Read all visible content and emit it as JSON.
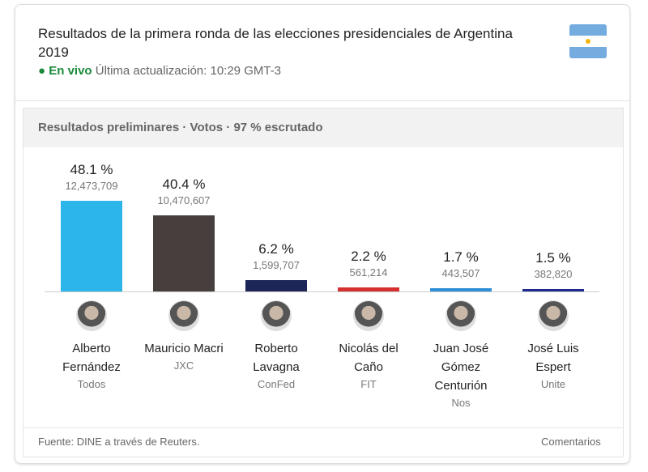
{
  "header": {
    "title": "Resultados de la primera ronda de las elecciones presidenciales de Argentina 2019",
    "live": "En vivo",
    "updated": "Última actualización: 10:29 GMT-3"
  },
  "subheader": "Resultados preliminares · Votos · 97 % escrutado",
  "chart_data": {
    "type": "bar",
    "categories": [
      "Alberto Fernández",
      "Mauricio Macri",
      "Roberto Lavagna",
      "Nicolás del Caño",
      "Juan José Gómez Centurión",
      "José Luis Espert"
    ],
    "parties": [
      "Todos",
      "JXC",
      "ConFed",
      "FIT",
      "Nos",
      "Unite"
    ],
    "values": [
      48.1,
      40.4,
      6.2,
      2.2,
      1.7,
      1.5
    ],
    "value_labels": [
      "48.1 %",
      "40.4 %",
      "6.2 %",
      "2.2 %",
      "1.7 %",
      "1.5 %"
    ],
    "votes": [
      {
        "value": 12473709,
        "label": "12,473,709"
      },
      {
        "value": 10470607,
        "label": "10,470,607"
      },
      {
        "value": 1599707,
        "label": "1,599,707"
      },
      {
        "value": 561214,
        "label": "561,214"
      },
      {
        "value": 443507,
        "label": "443,507"
      },
      {
        "value": 382820,
        "label": "382,820"
      }
    ],
    "colors": [
      "#2bb5e8",
      "#473f3e",
      "#1c2657",
      "#d3302f",
      "#2d8fd6",
      "#1d2b8f"
    ]
  },
  "footer": {
    "source": "Fuente: DINE a través de Reuters.",
    "comments": "Comentarios"
  }
}
